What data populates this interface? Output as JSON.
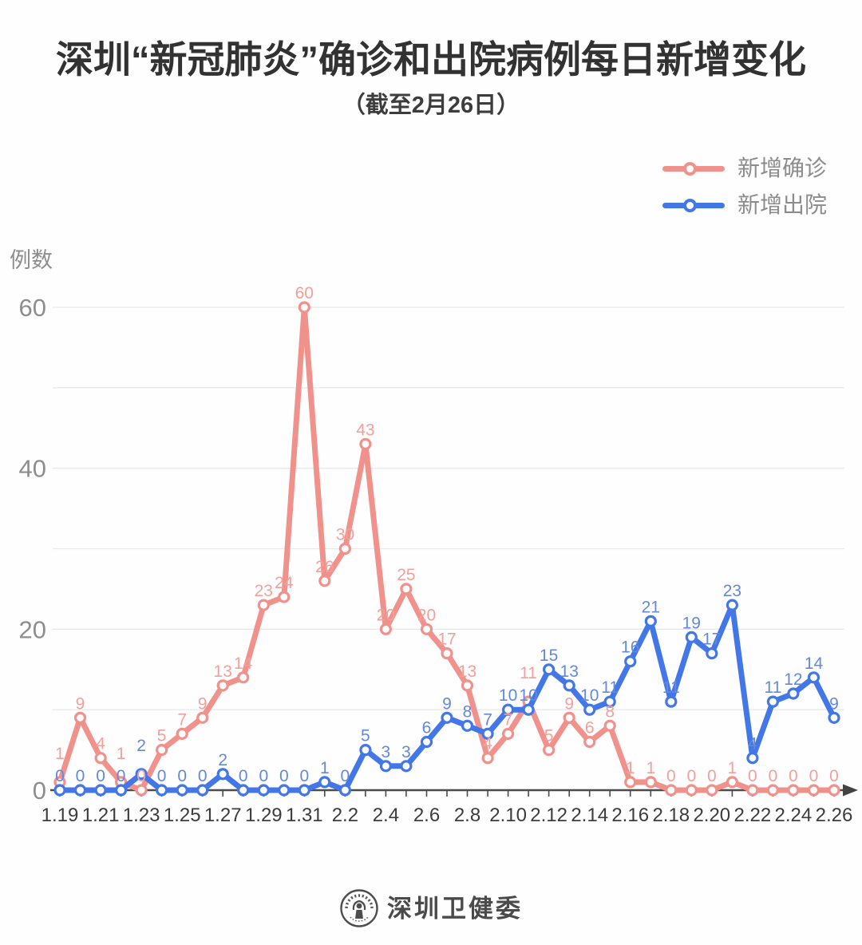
{
  "chart_data": {
    "type": "line",
    "title": "深圳“新冠肺炎”确诊和出院病例每日新增变化",
    "subtitle": "（截至2月26日）",
    "ylabel": "例数",
    "xlabel": "",
    "x_labels": [
      "1.19",
      "1.20",
      "1.21",
      "1.22",
      "1.23",
      "1.24",
      "1.25",
      "1.26",
      "1.27",
      "1.28",
      "1.29",
      "1.30",
      "1.31",
      "2.1",
      "2.2",
      "2.3",
      "2.4",
      "2.5",
      "2.6",
      "2.7",
      "2.8",
      "2.9",
      "2.10",
      "2.11",
      "2.12",
      "2.13",
      "2.14",
      "2.15",
      "2.16",
      "2.17",
      "2.18",
      "2.19",
      "2.20",
      "2.21",
      "2.22",
      "2.23",
      "2.24",
      "2.25",
      "2.26"
    ],
    "x_label_interval": 2,
    "series": [
      {
        "name": "新增确诊",
        "color": "#f1918b",
        "label_color": "#f3a09a",
        "values": [
          1,
          9,
          4,
          1,
          0,
          5,
          7,
          9,
          13,
          14,
          23,
          24,
          60,
          26,
          30,
          43,
          20,
          25,
          20,
          17,
          13,
          4,
          7,
          11,
          5,
          9,
          6,
          8,
          1,
          1,
          0,
          0,
          0,
          1,
          0,
          0,
          0,
          0,
          0
        ]
      },
      {
        "name": "新增出院",
        "color": "#4377e8",
        "label_color": "#6289dc",
        "values": [
          0,
          0,
          0,
          0,
          2,
          0,
          0,
          0,
          2,
          0,
          0,
          0,
          0,
          1,
          0,
          5,
          3,
          3,
          6,
          9,
          8,
          7,
          10,
          10,
          15,
          13,
          10,
          11,
          16,
          21,
          11,
          19,
          17,
          23,
          4,
          11,
          12,
          14,
          9
        ]
      }
    ],
    "ylim": [
      0,
      62
    ],
    "yticks": [
      0,
      20,
      40,
      60
    ],
    "gridline_values": [
      10,
      20,
      30,
      40,
      50,
      60
    ],
    "grid": true,
    "legend_position": "top-right",
    "marker": "hollow-circle",
    "every_point_labeled": true
  },
  "footer": {
    "org_name": "深圳卫健委"
  }
}
